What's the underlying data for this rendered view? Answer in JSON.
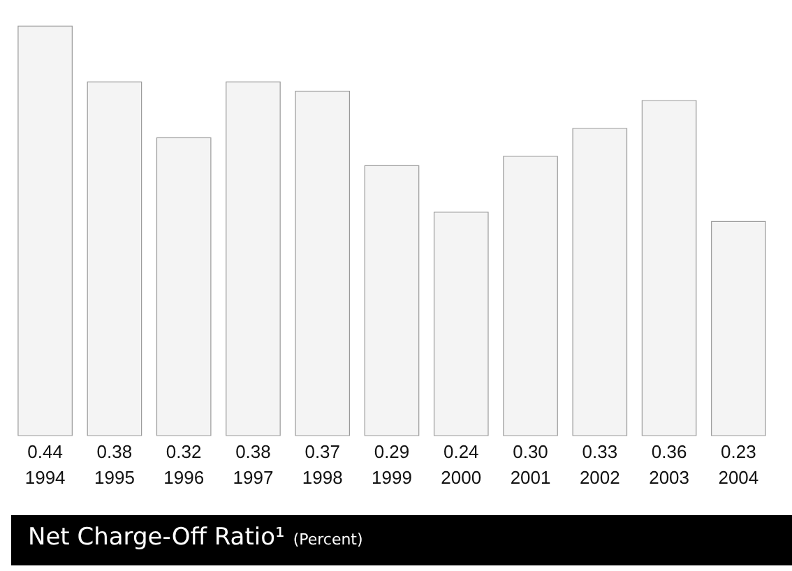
{
  "chart_data": {
    "type": "bar",
    "title": "Net Charge-Off Ratio¹",
    "subtitle": "(Percent)",
    "categories": [
      "1994",
      "1995",
      "1996",
      "1997",
      "1998",
      "1999",
      "2000",
      "2001",
      "2002",
      "2003",
      "2004"
    ],
    "values": [
      0.44,
      0.38,
      0.32,
      0.38,
      0.37,
      0.29,
      0.24,
      0.3,
      0.33,
      0.36,
      0.23
    ],
    "color": "#f4f4f4",
    "value_labels": [
      "0.44",
      "0.38",
      "0.32",
      "0.38",
      "0.37",
      "0.29",
      "0.24",
      "0.30",
      "0.33",
      "0.36",
      "0.23"
    ]
  }
}
